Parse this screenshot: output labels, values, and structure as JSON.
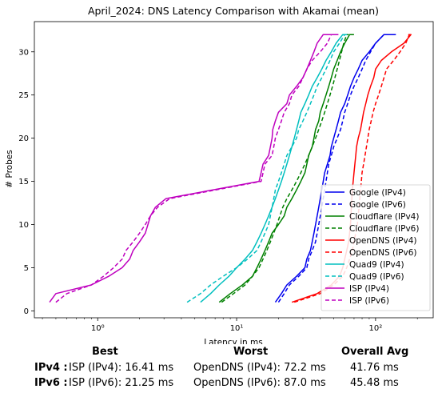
{
  "chart_data": {
    "type": "line",
    "title": "April_2024: DNS Latency Comparison with Akamai (mean)",
    "xlabel": "Latency in ms",
    "ylabel": "# Probes",
    "xscale": "log",
    "xlim": [
      0.35,
      260
    ],
    "ylim": [
      -0.8,
      33.5
    ],
    "x_ticks": [
      1,
      10,
      100
    ],
    "x_tick_labels": [
      "10⁰",
      "10¹",
      "10²"
    ],
    "y_ticks": [
      0,
      5,
      10,
      15,
      20,
      25,
      30
    ],
    "grid": false,
    "legend_position": "lower-right",
    "series": [
      {
        "name": "Google (IPv4)",
        "color": "#0000ee",
        "dash": false,
        "x": [
          19,
          21,
          23,
          27,
          31,
          32,
          34,
          35,
          36,
          37,
          38,
          39,
          40,
          41,
          42,
          43,
          45,
          47,
          48,
          50,
          52,
          54,
          56,
          60,
          63,
          66,
          70,
          75,
          80,
          90,
          100,
          115,
          140
        ],
        "y": [
          1,
          2,
          3,
          4,
          5,
          6,
          7,
          8,
          9,
          10,
          11,
          12,
          13,
          14,
          15,
          16,
          17,
          18,
          19,
          20,
          21,
          22,
          23,
          24,
          25,
          26,
          27,
          28,
          29,
          30,
          31,
          32,
          32
        ]
      },
      {
        "name": "Google (IPv6)",
        "color": "#0000ee",
        "dash": true,
        "x": [
          20,
          22,
          24,
          28,
          32,
          33,
          35,
          37,
          38,
          39,
          40,
          41,
          42,
          43,
          44,
          45,
          46,
          48,
          50,
          53,
          56,
          58,
          60,
          63,
          66,
          70,
          75,
          80,
          85,
          92,
          100,
          115,
          135
        ],
        "y": [
          1,
          2,
          3,
          4,
          5,
          6,
          7,
          8,
          9,
          10,
          11,
          12,
          13,
          14,
          15,
          16,
          17,
          18,
          19,
          20,
          21,
          22,
          23,
          24,
          25,
          26,
          27,
          28,
          29,
          30,
          31,
          32,
          32
        ]
      },
      {
        "name": "Cloudflare (IPv4)",
        "color": "#008000",
        "dash": false,
        "x": [
          7.5,
          9,
          11,
          13,
          14,
          15,
          16,
          17,
          18,
          20,
          22,
          23,
          25,
          27,
          29,
          31,
          32,
          33,
          35,
          36,
          37,
          39,
          40,
          42,
          44,
          46,
          48,
          50,
          53,
          56,
          60,
          65,
          70
        ],
        "y": [
          1,
          2,
          3,
          4,
          5,
          6,
          7,
          8,
          9,
          10,
          11,
          12,
          13,
          14,
          15,
          16,
          17,
          18,
          19,
          20,
          21,
          22,
          23,
          24,
          25,
          26,
          27,
          28,
          29,
          30,
          31,
          32,
          32
        ]
      },
      {
        "name": "Cloudflare (IPv6)",
        "color": "#008000",
        "dash": true,
        "x": [
          7.8,
          9.5,
          11.5,
          13,
          14.5,
          15.5,
          16.5,
          17.5,
          18.5,
          19.5,
          20.5,
          21.5,
          23,
          25,
          27,
          29,
          31,
          33,
          35,
          37,
          39,
          41,
          43,
          45,
          47,
          49,
          51,
          53,
          55,
          57,
          59,
          62,
          64
        ],
        "y": [
          1,
          2,
          3,
          4,
          5,
          6,
          7,
          8,
          9,
          10,
          11,
          12,
          13,
          14,
          15,
          16,
          17,
          18,
          19,
          20,
          21,
          22,
          23,
          24,
          25,
          26,
          27,
          28,
          29,
          30,
          31,
          32,
          32
        ]
      },
      {
        "name": "OpenDNS (IPv4)",
        "color": "#ff0000",
        "dash": false,
        "x": [
          25,
          38,
          48,
          55,
          58,
          60,
          62,
          64,
          65,
          66,
          66.5,
          67,
          67.5,
          68,
          69,
          70,
          71,
          72,
          73,
          75,
          78,
          80,
          82,
          85,
          88,
          92,
          97,
          100,
          110,
          130,
          160,
          180,
          175
        ],
        "y": [
          1,
          2,
          3,
          4,
          5,
          6,
          7,
          8,
          9,
          10,
          11,
          12,
          13,
          14,
          15,
          16,
          17,
          18,
          19,
          20,
          21,
          22,
          23,
          24,
          25,
          26,
          27,
          28,
          29,
          30,
          31,
          32,
          32
        ]
      },
      {
        "name": "OpenDNS (IPv6)",
        "color": "#ff0000",
        "dash": true,
        "x": [
          26,
          40,
          50,
          58,
          62,
          65,
          68,
          70,
          72,
          74,
          75,
          76,
          77,
          78,
          79,
          80,
          82,
          84,
          86,
          88,
          90,
          93,
          96,
          100,
          105,
          110,
          115,
          120,
          135,
          150,
          165,
          175,
          170
        ],
        "y": [
          1,
          2,
          3,
          4,
          5,
          6,
          7,
          8,
          9,
          10,
          11,
          12,
          13,
          14,
          15,
          16,
          17,
          18,
          19,
          20,
          21,
          22,
          23,
          24,
          25,
          26,
          27,
          28,
          29,
          30,
          31,
          32,
          32
        ]
      },
      {
        "name": "Quad9 (IPv4)",
        "color": "#00bfbf",
        "dash": false,
        "x": [
          5.5,
          6.5,
          7.5,
          8.8,
          10,
          11.5,
          13,
          14,
          15,
          16,
          17,
          18,
          19,
          20,
          21,
          22,
          23,
          24,
          25,
          26,
          27,
          28,
          29,
          31,
          33,
          35,
          38,
          41,
          44,
          48,
          52,
          58,
          62
        ],
        "y": [
          1,
          2,
          3,
          4,
          5,
          6,
          7,
          8,
          9,
          10,
          11,
          12,
          13,
          14,
          15,
          16,
          17,
          18,
          19,
          20,
          21,
          22,
          23,
          24,
          25,
          26,
          27,
          28,
          29,
          30,
          31,
          32,
          32
        ]
      },
      {
        "name": "Quad9 (IPv6)",
        "color": "#00bfbf",
        "dash": true,
        "x": [
          4.4,
          5.5,
          6.5,
          8,
          10,
          12,
          14,
          15,
          16,
          17,
          17.5,
          18,
          18.5,
          19,
          20,
          21,
          22,
          23,
          25,
          27,
          28,
          30,
          32,
          34,
          36,
          38,
          41,
          44,
          47,
          50,
          55,
          60,
          64
        ],
        "y": [
          1,
          2,
          3,
          4,
          5,
          6,
          7,
          8,
          9,
          10,
          11,
          12,
          13,
          14,
          15,
          16,
          17,
          18,
          19,
          20,
          21,
          22,
          23,
          24,
          25,
          26,
          27,
          28,
          29,
          30,
          31,
          32,
          32
        ]
      },
      {
        "name": "ISP (IPv4)",
        "color": "#bf00bf",
        "dash": false,
        "x": [
          0.45,
          0.5,
          0.9,
          1.2,
          1.5,
          1.7,
          1.8,
          2.0,
          2.2,
          2.3,
          2.4,
          2.6,
          3.1,
          14.5,
          15,
          15.5,
          17,
          17.5,
          18,
          18.2,
          19,
          20,
          23,
          24,
          27,
          30,
          32,
          34,
          36,
          38,
          42,
          52,
          54
        ],
        "y": [
          1,
          2,
          3,
          4,
          5,
          6,
          7,
          8,
          9,
          10,
          11,
          12,
          13,
          15,
          16,
          17,
          18,
          19,
          20,
          21,
          22,
          23,
          24,
          25,
          26,
          27,
          28,
          29,
          30,
          31,
          32,
          32,
          32
        ]
      },
      {
        "name": "ISP (IPv6)",
        "color": "#bf00bf",
        "dash": true,
        "x": [
          0.5,
          0.6,
          0.9,
          1.1,
          1.3,
          1.5,
          1.6,
          1.8,
          2.0,
          2.2,
          2.4,
          2.7,
          3.3,
          15,
          15.5,
          16,
          18,
          18.5,
          19,
          20,
          21,
          22,
          24,
          25,
          28,
          30,
          32,
          35,
          40,
          45,
          48,
          50,
          52
        ],
        "y": [
          1,
          2,
          3,
          4,
          5,
          6,
          7,
          8,
          9,
          10,
          11,
          12,
          13,
          15,
          16,
          17,
          18,
          19,
          20,
          21,
          22,
          23,
          24,
          25,
          26,
          27,
          28,
          29,
          30,
          31,
          32,
          32,
          32
        ]
      }
    ]
  },
  "summary": {
    "headers": {
      "best": "Best",
      "worst": "Worst",
      "avg": "Overall Avg"
    },
    "rows": [
      {
        "label": "IPv4 :",
        "best": "ISP (IPv4): 16.41 ms",
        "worst": "OpenDNS (IPv4): 72.2 ms",
        "avg": "41.76 ms"
      },
      {
        "label": "IPv6 :",
        "best": "ISP (IPv6): 21.25 ms",
        "worst": "OpenDNS (IPv6): 87.0 ms",
        "avg": "45.48 ms"
      }
    ]
  }
}
